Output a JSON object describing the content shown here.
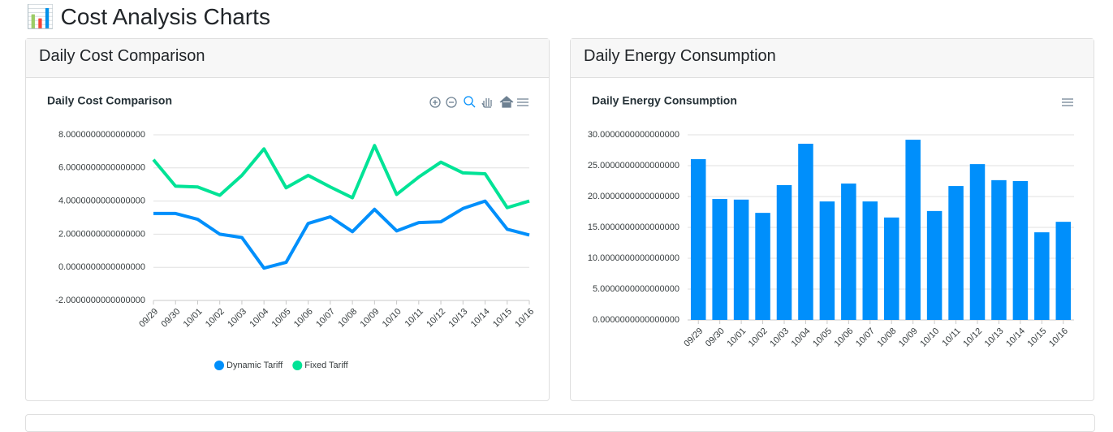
{
  "page": {
    "title": "📊 Cost Analysis Charts"
  },
  "chart_data": [
    {
      "type": "line",
      "card_title": "Daily Cost Comparison",
      "title": "Daily Cost Comparison",
      "categories": [
        "09/29",
        "09/30",
        "10/01",
        "10/02",
        "10/03",
        "10/04",
        "10/05",
        "10/06",
        "10/07",
        "10/08",
        "10/09",
        "10/10",
        "10/11",
        "10/12",
        "10/13",
        "10/14",
        "10/15",
        "10/16"
      ],
      "series": [
        {
          "name": "Dynamic Tariff",
          "color": "#008ffb",
          "values": [
            3.25,
            3.25,
            2.9,
            2.0,
            1.8,
            -0.05,
            0.3,
            2.65,
            3.05,
            2.15,
            3.5,
            2.2,
            2.7,
            2.75,
            3.55,
            4.0,
            2.3,
            1.95
          ]
        },
        {
          "name": "Fixed Tariff",
          "color": "#00e396",
          "values": [
            6.5,
            4.9,
            4.85,
            4.35,
            5.55,
            7.15,
            4.8,
            5.55,
            4.85,
            4.2,
            7.35,
            4.4,
            5.45,
            6.35,
            5.7,
            5.65,
            3.6,
            4.0
          ]
        }
      ],
      "ylim": [
        -2,
        8
      ],
      "yticks": [
        {
          "value": -2,
          "label": "-2.0000000000000000"
        },
        {
          "value": 0,
          "label": "0.0000000000000000"
        },
        {
          "value": 2,
          "label": "2.0000000000000000"
        },
        {
          "value": 4,
          "label": "4.0000000000000000"
        },
        {
          "value": 6,
          "label": "6.0000000000000000"
        },
        {
          "value": 8,
          "label": "8.0000000000000000"
        }
      ],
      "grid": true,
      "legend": "bottom"
    },
    {
      "type": "bar",
      "card_title": "Daily Energy Consumption",
      "title": "Daily Energy Consumption",
      "categories": [
        "09/29",
        "09/30",
        "10/01",
        "10/02",
        "10/03",
        "10/04",
        "10/05",
        "10/06",
        "10/07",
        "10/08",
        "10/09",
        "10/10",
        "10/11",
        "10/12",
        "10/13",
        "10/14",
        "10/15",
        "10/16"
      ],
      "values": [
        26.05,
        19.6,
        19.5,
        17.35,
        21.85,
        28.55,
        19.2,
        22.1,
        19.2,
        16.6,
        29.2,
        17.65,
        21.7,
        25.25,
        22.65,
        22.5,
        14.2,
        15.9
      ],
      "color": "#008ffb",
      "ylim": [
        0,
        30
      ],
      "yticks": [
        {
          "value": 0,
          "label": "0.0000000000000000"
        },
        {
          "value": 5,
          "label": "5.0000000000000000"
        },
        {
          "value": 10,
          "label": "10.0000000000000000"
        },
        {
          "value": 15,
          "label": "15.0000000000000000"
        },
        {
          "value": 20,
          "label": "20.0000000000000000"
        },
        {
          "value": 25,
          "label": "25.0000000000000000"
        },
        {
          "value": 30,
          "label": "30.0000000000000000"
        }
      ],
      "grid": true
    }
  ]
}
